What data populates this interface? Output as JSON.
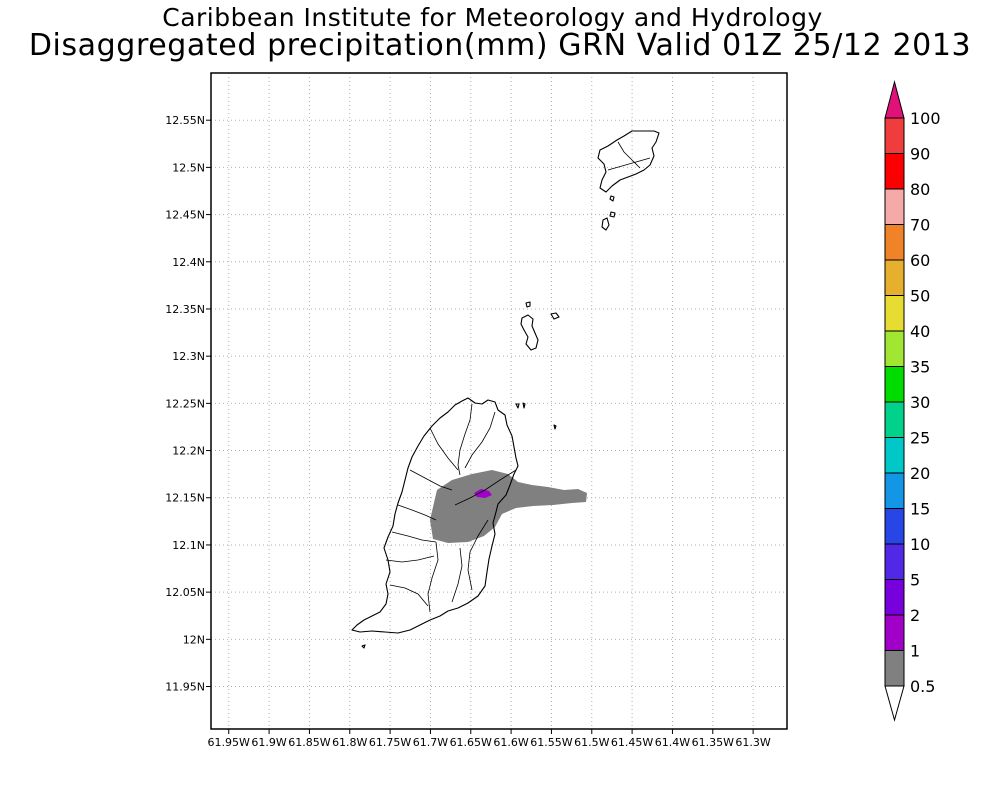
{
  "title": {
    "line1": "Caribbean Institute for Meteorology and Hydrology",
    "line2": "Disaggregated precipitation(mm) GRN Valid 01Z 25/12 2013"
  },
  "map": {
    "lon_min": -61.972,
    "lon_max": -61.258,
    "lat_min": 11.905,
    "lat_max": 12.6,
    "grid": "dotted",
    "y_ticks": [
      {
        "value": 12.55,
        "label": "12.55N"
      },
      {
        "value": 12.5,
        "label": "12.5N"
      },
      {
        "value": 12.45,
        "label": "12.45N"
      },
      {
        "value": 12.4,
        "label": "12.4N"
      },
      {
        "value": 12.35,
        "label": "12.35N"
      },
      {
        "value": 12.3,
        "label": "12.3N"
      },
      {
        "value": 12.25,
        "label": "12.25N"
      },
      {
        "value": 12.2,
        "label": "12.2N"
      },
      {
        "value": 12.15,
        "label": "12.15N"
      },
      {
        "value": 12.1,
        "label": "12.1N"
      },
      {
        "value": 12.05,
        "label": "12.05N"
      },
      {
        "value": 12.0,
        "label": "12N"
      },
      {
        "value": 11.95,
        "label": "11.95N"
      }
    ],
    "x_ticks": [
      {
        "value": -61.95,
        "label": "61.95W"
      },
      {
        "value": -61.9,
        "label": "61.9W"
      },
      {
        "value": -61.85,
        "label": "61.85W"
      },
      {
        "value": -61.8,
        "label": "61.8W"
      },
      {
        "value": -61.75,
        "label": "61.75W"
      },
      {
        "value": -61.7,
        "label": "61.7W"
      },
      {
        "value": -61.65,
        "label": "61.65W"
      },
      {
        "value": -61.6,
        "label": "61.6W"
      },
      {
        "value": -61.55,
        "label": "61.55W"
      },
      {
        "value": -61.5,
        "label": "61.5W"
      },
      {
        "value": -61.45,
        "label": "61.45W"
      },
      {
        "value": -61.4,
        "label": "61.4W"
      },
      {
        "value": -61.35,
        "label": "61.35W"
      },
      {
        "value": -61.3,
        "label": "61.3W"
      }
    ]
  },
  "colorbar": {
    "bins": [
      {
        "label": "0.5",
        "color": "#808080"
      },
      {
        "label": "1",
        "color": "#a000c8"
      },
      {
        "label": "2",
        "color": "#7800dc"
      },
      {
        "label": "5",
        "color": "#5028e6"
      },
      {
        "label": "10",
        "color": "#2846e6"
      },
      {
        "label": "15",
        "color": "#1496e6"
      },
      {
        "label": "20",
        "color": "#00c8c8"
      },
      {
        "label": "25",
        "color": "#00d28c"
      },
      {
        "label": "30",
        "color": "#00dc00"
      },
      {
        "label": "35",
        "color": "#a0e632"
      },
      {
        "label": "40",
        "color": "#e6dc32"
      },
      {
        "label": "50",
        "color": "#e6af2d"
      },
      {
        "label": "60",
        "color": "#f08228"
      },
      {
        "label": "70",
        "color": "#f5aaaa"
      },
      {
        "label": "80",
        "color": "#fa0000"
      },
      {
        "label": "90",
        "color": "#ef3c3c"
      }
    ],
    "top_label": "100",
    "top_color": "#e0127a",
    "bottom_color": "#ffffff"
  }
}
